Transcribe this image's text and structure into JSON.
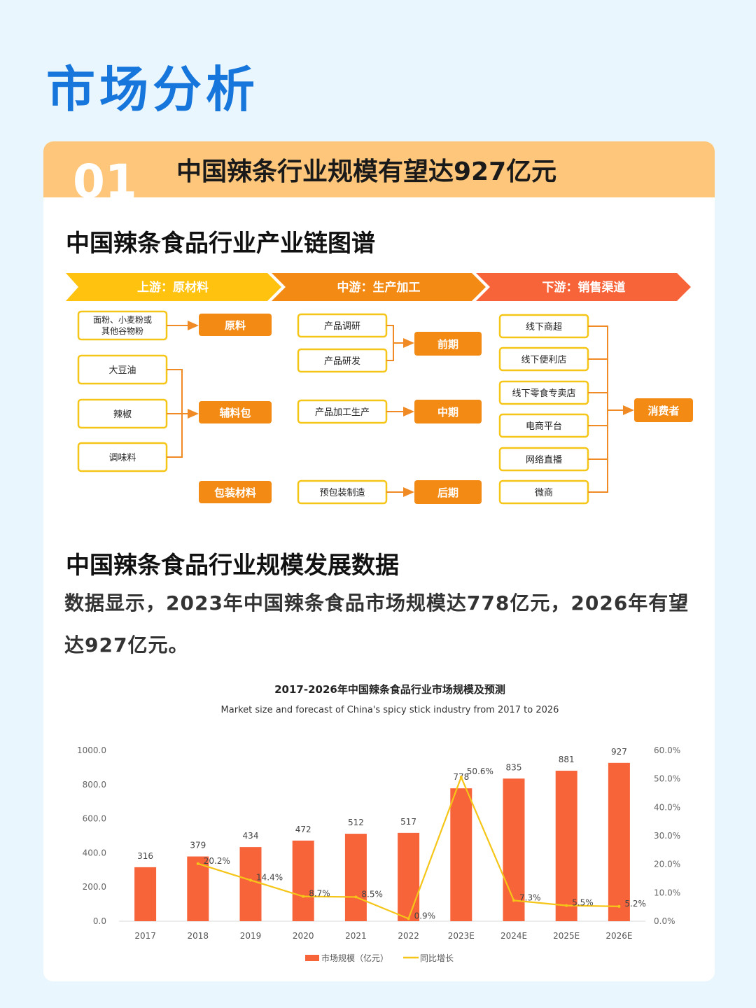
{
  "page": {
    "title": "市场分析"
  },
  "banner": {
    "number": "01",
    "title": "中国辣条行业规模有望达927亿元"
  },
  "section1": {
    "title": "中国辣条食品行业产业链图谱"
  },
  "chain": {
    "stages": [
      "上游：原材料",
      "中游：生产加工",
      "下游：销售渠道"
    ],
    "upstream": {
      "flour": [
        "面粉、小麦粉或",
        "其他谷物粉"
      ],
      "raw": "原料",
      "ingredients": [
        "大豆油",
        "辣椒",
        "调味料"
      ],
      "seasoning_pack": "辅料包",
      "packaging": "包装材料"
    },
    "midstream": {
      "research": "产品调研",
      "development": "产品研发",
      "early": "前期",
      "processing": "产品加工生产",
      "middle": "中期",
      "prepack": "预包装制造",
      "late": "后期"
    },
    "downstream": {
      "channels": [
        "线下商超",
        "线下便利店",
        "线下零食专卖店",
        "电商平台",
        "网络直播",
        "微商"
      ],
      "consumer": "消费者"
    },
    "colors": {
      "stage1": "#ffc20e",
      "stage2": "#f28a14",
      "stage3": "#f7643a",
      "box_border": "#f5c518",
      "node_fill": "#f28a14",
      "connector": "#f08a24"
    }
  },
  "section2": {
    "title": "中国辣条食品行业规模发展数据"
  },
  "paragraph": {
    "text": "数据显示，2023年中国辣条食品市场规模达778亿元，2026年有望达927亿元。"
  },
  "chart_data": {
    "type": "bar",
    "title": "2017-2026年中国辣条食品行业市场规模及预测",
    "subtitle": "Market size and forecast of China's spicy stick industry from 2017 to 2026",
    "categories": [
      "2017",
      "2018",
      "2019",
      "2020",
      "2021",
      "2022",
      "2023E",
      "2024E",
      "2025E",
      "2026E"
    ],
    "series": [
      {
        "name": "市场规模（亿元）",
        "type": "bar",
        "axis": "left",
        "values": [
          316,
          379,
          434,
          472,
          512,
          517,
          778,
          835,
          881,
          927
        ],
        "color": "#f7643a"
      },
      {
        "name": "同比增长",
        "type": "line",
        "axis": "right",
        "values": [
          null,
          20.2,
          14.4,
          8.7,
          8.5,
          0.9,
          50.6,
          7.3,
          5.5,
          5.2
        ],
        "color": "#f5c518"
      }
    ],
    "bar_labels": [
      "316",
      "379",
      "434",
      "472",
      "512",
      "517",
      "778",
      "835",
      "881",
      "927"
    ],
    "line_labels": [
      "",
      "20.2%",
      "14.4%",
      "8.7%",
      "8.5%",
      "0.9%",
      "50.6%",
      "7.3%",
      "5.5%",
      "5.2%"
    ],
    "y_left": {
      "ticks": [
        "0.0",
        "200.0",
        "400.0",
        "600.0",
        "800.0",
        "1000.0"
      ],
      "range": [
        0,
        1000
      ]
    },
    "y_right": {
      "ticks": [
        "0.0%",
        "10.0%",
        "20.0%",
        "30.0%",
        "40.0%",
        "50.0%",
        "60.0%"
      ],
      "range": [
        0,
        60
      ]
    },
    "legend_position": "bottom",
    "grid": false
  }
}
